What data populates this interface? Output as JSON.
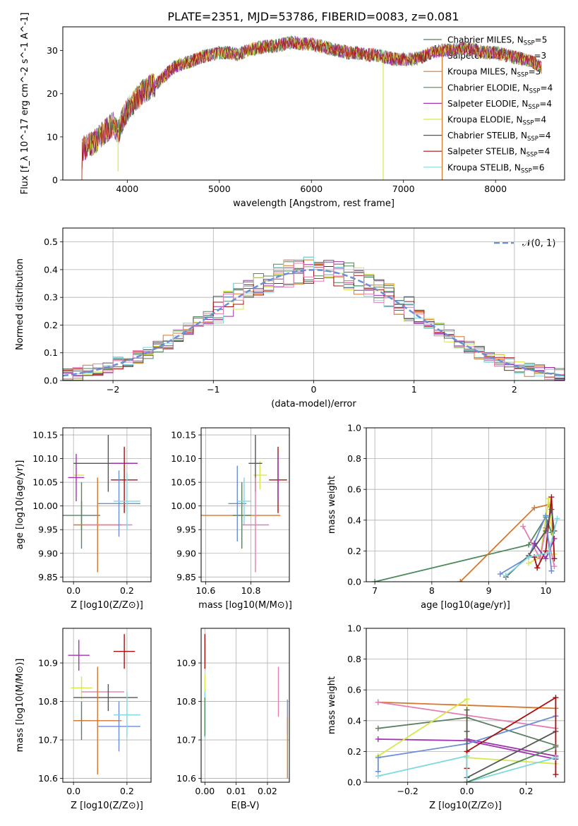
{
  "figure_title": "PLATE=2351, MJD=53786, FIBERID=0083, z=0.081",
  "series_legend": [
    {
      "name": "Chabrier MILES",
      "nssp": "5",
      "color": "#5b7f63"
    },
    {
      "name": "Salpeter MILES",
      "nssp": "3",
      "color": "#9a31a8"
    },
    {
      "name": "Kroupa MILES",
      "nssp": "3",
      "color": "#d8762b"
    },
    {
      "name": "Chabrier ELODIE",
      "nssp": "4",
      "color": "#4e8a5a"
    },
    {
      "name": "Salpeter ELODIE",
      "nssp": "4",
      "color": "#a333b5"
    },
    {
      "name": "Kroupa ELODIE",
      "nssp": "4",
      "color": "#d6e84a"
    },
    {
      "name": "Chabrier STELIB",
      "nssp": "4",
      "color": "#555555"
    },
    {
      "name": "Salpeter STELIB",
      "nssp": "4",
      "color": "#a81010"
    },
    {
      "name": "Kroupa STELIB",
      "nssp": "6",
      "color": "#7fd8e0"
    }
  ],
  "chart_data": [
    {
      "id": "spectrum",
      "type": "line",
      "title": "PLATE=2351, MJD=53786, FIBERID=0083, z=0.081",
      "xlabel": "wavelength [Angstrom, rest frame]",
      "ylabel": "Flux [f_λ 10^-17 erg cm^-2 s^-1 A^-1]",
      "xlim": [
        3300,
        8750
      ],
      "ylim": [
        0,
        35.5
      ],
      "xticks": [
        4000,
        5000,
        6000,
        7000,
        8000
      ],
      "yticks": [
        0,
        10,
        20,
        30
      ],
      "grid": false,
      "legend_position": "top-right",
      "continuum": {
        "x": [
          3500,
          3650,
          3750,
          3850,
          3900,
          3950,
          4000,
          4100,
          4200,
          4300,
          4400,
          4500,
          4600,
          4700,
          4800,
          4900,
          5000,
          5100,
          5200,
          5300,
          5400,
          5500,
          5600,
          5700,
          5800,
          5900,
          6000,
          6100,
          6200,
          6300,
          6400,
          6500,
          6600,
          6700,
          6800,
          6900,
          7000,
          7100,
          7200,
          7300,
          7400,
          7500,
          7600,
          7700,
          7800,
          7900,
          8000,
          8100,
          8200,
          8300,
          8400,
          8500
        ],
        "y": [
          7,
          9,
          11,
          13,
          11,
          14,
          16,
          19,
          21,
          22,
          24,
          26,
          27,
          27.5,
          28.5,
          29,
          29.5,
          29.5,
          29,
          30,
          30.5,
          31,
          31,
          31.5,
          32,
          31.5,
          31.5,
          31,
          30.5,
          30,
          29.5,
          29.5,
          29,
          29,
          28.5,
          28,
          28,
          28,
          28.5,
          29.5,
          30,
          30,
          30.5,
          30.5,
          30,
          29.5,
          29.5,
          29,
          28.5,
          28,
          27.5,
          26
        ]
      },
      "dips": [
        {
          "x": 6780,
          "y": 0
        },
        {
          "x": 7420,
          "y": 0
        },
        {
          "x": 3900,
          "y": 2
        }
      ]
    },
    {
      "id": "residuals",
      "type": "line",
      "xlabel": "(data-model)/error",
      "ylabel": "Normed distribution",
      "xlim": [
        -2.5,
        2.5
      ],
      "ylim": [
        0,
        0.55
      ],
      "xticks": [
        -2,
        -1,
        0,
        1,
        2
      ],
      "yticks": [
        0.0,
        0.1,
        0.2,
        0.3,
        0.4,
        0.5
      ],
      "grid": true,
      "legend_position": "top-right",
      "reference_legend": "𝒩(0, 1)",
      "reference_color": "#6a8fd6",
      "bin_width": 0.1
    },
    {
      "id": "age_vs_Z",
      "type": "scatter",
      "xlabel": "Z [log10(Z/Z⊙)]",
      "ylabel": "age [log10(age/yr)]",
      "xlim": [
        -0.04,
        0.29
      ],
      "ylim": [
        9.84,
        10.165
      ],
      "xticks": [
        0.0,
        0.2
      ],
      "xticklabels": [
        "0.0",
        "0.2"
      ],
      "yticks": [
        9.85,
        9.9,
        9.95,
        10.0,
        10.05,
        10.1,
        10.15
      ],
      "yticklabels": [
        "9.85",
        "9.90",
        "9.95",
        "10.00",
        "10.05",
        "10.10",
        "10.15"
      ],
      "grid": true,
      "points": [
        {
          "x": 0.02,
          "y": 10.065,
          "xe": 0.02,
          "ye": 0.0,
          "color": "#d6e84a"
        },
        {
          "x": 0.01,
          "y": 10.06,
          "xe": 0.03,
          "ye": 0.05,
          "color": "#a333b5"
        },
        {
          "x": 0.12,
          "y": 10.09,
          "xe": 0.12,
          "ye": 0.0,
          "color": "#555555"
        },
        {
          "x": 0.13,
          "y": 10.09,
          "xe": 0.0,
          "ye": 0.06,
          "color": "#555555"
        },
        {
          "x": 0.19,
          "y": 10.09,
          "xe": 0.05,
          "ye": 0.0,
          "color": "#9a31a8"
        },
        {
          "x": 0.19,
          "y": 10.055,
          "xe": 0.05,
          "ye": 0.07,
          "color": "#a81010"
        },
        {
          "x": 0.03,
          "y": 9.98,
          "xe": 0.07,
          "ye": 0.03,
          "color": "#5b7f63"
        },
        {
          "x": 0.03,
          "y": 9.98,
          "xe": 0.0,
          "ye": 0.07,
          "color": "#4e8a5a"
        },
        {
          "x": 0.09,
          "y": 9.96,
          "xe": 0.09,
          "ye": 0.1,
          "color": "#d8762b"
        },
        {
          "x": 0.13,
          "y": 9.96,
          "xe": 0.09,
          "ye": 0.0,
          "color": "#e47db3"
        },
        {
          "x": 0.17,
          "y": 10.005,
          "xe": 0.08,
          "ye": 0.07,
          "color": "#6a8fd6"
        },
        {
          "x": 0.2,
          "y": 10.01,
          "xe": 0.05,
          "ye": 0.06,
          "color": "#7fd8e0"
        }
      ]
    },
    {
      "id": "age_vs_mass",
      "type": "scatter",
      "xlabel": "mass [log10(M/M⊙)]",
      "ylabel": "",
      "xlim": [
        10.58,
        10.97
      ],
      "ylim": [
        9.84,
        10.165
      ],
      "xticks": [
        10.6,
        10.8
      ],
      "xticklabels": [
        "10.6",
        "10.8"
      ],
      "yticks": [
        9.85,
        9.9,
        9.95,
        10.0,
        10.05,
        10.1,
        10.15
      ],
      "yticklabels": [
        "9.85",
        "9.90",
        "9.95",
        "10.00",
        "10.05",
        "10.10",
        "10.15"
      ],
      "grid": true,
      "points": [
        {
          "x": 10.84,
          "y": 10.065,
          "xe": 0.03,
          "ye": 0.03,
          "color": "#d6e84a"
        },
        {
          "x": 10.82,
          "y": 10.09,
          "xe": 0.03,
          "ye": 0.06,
          "color": "#555555"
        },
        {
          "x": 10.92,
          "y": 10.055,
          "xe": 0.04,
          "ye": 0.07,
          "color": "#a81010"
        },
        {
          "x": 10.92,
          "y": 10.06,
          "xe": 0.0,
          "ye": 0.05,
          "color": "#9a31a8"
        },
        {
          "x": 10.75,
          "y": 9.98,
          "xe": 0.18,
          "ye": 0.0,
          "color": "#d8762b"
        },
        {
          "x": 10.76,
          "y": 9.98,
          "xe": 0.04,
          "ye": 0.07,
          "color": "#5b7f63"
        },
        {
          "x": 10.74,
          "y": 10.005,
          "xe": 0.04,
          "ye": 0.08,
          "color": "#6a8fd6"
        },
        {
          "x": 10.77,
          "y": 10.01,
          "xe": 0.03,
          "ye": 0.05,
          "color": "#7fd8e0"
        },
        {
          "x": 10.82,
          "y": 9.96,
          "xe": 0.06,
          "ye": 0.1,
          "color": "#e47db3"
        }
      ]
    },
    {
      "id": "massweight_vs_age",
      "type": "line",
      "xlabel": "age [log10(age/yr)]",
      "ylabel": "mass weight",
      "xlim": [
        6.85,
        10.33
      ],
      "ylim": [
        0,
        1.0
      ],
      "xticks": [
        7,
        8,
        9,
        10
      ],
      "yticks": [
        0.0,
        0.2,
        0.4,
        0.6,
        0.8,
        1.0
      ],
      "grid": true,
      "series": [
        {
          "color": "#4e8a5a",
          "x": [
            7.0,
            9.7,
            10.0,
            10.1
          ],
          "y": [
            0.0,
            0.24,
            0.42,
            0.32
          ]
        },
        {
          "color": "#d8762b",
          "x": [
            8.5,
            9.8,
            10.05
          ],
          "y": [
            0.0,
            0.48,
            0.5
          ]
        },
        {
          "color": "#d6e84a",
          "x": [
            9.7,
            9.9,
            10.05,
            10.15
          ],
          "y": [
            0.12,
            0.16,
            0.54,
            0.18
          ]
        },
        {
          "color": "#e47db3",
          "x": [
            9.6,
            9.9,
            10.0,
            10.15
          ],
          "y": [
            0.36,
            0.15,
            0.35,
            0.1
          ]
        },
        {
          "color": "#a81010",
          "x": [
            9.8,
            9.85,
            10.0,
            10.1,
            10.15
          ],
          "y": [
            0.16,
            0.09,
            0.2,
            0.55,
            0.15
          ]
        },
        {
          "color": "#6a8fd6",
          "x": [
            9.2,
            9.7,
            10.0,
            10.1
          ],
          "y": [
            0.05,
            0.16,
            0.43,
            0.07
          ]
        },
        {
          "color": "#9a31a8",
          "x": [
            9.8,
            10.0,
            10.15
          ],
          "y": [
            0.25,
            0.15,
            0.28
          ]
        },
        {
          "color": "#555555",
          "x": [
            9.3,
            9.7,
            10.0,
            10.1,
            10.15
          ],
          "y": [
            0.03,
            0.17,
            0.33,
            0.47,
            0.33
          ]
        },
        {
          "color": "#7fd8e0",
          "x": [
            9.3,
            9.7,
            10.05,
            10.2
          ],
          "y": [
            0.04,
            0.16,
            0.19,
            0.41
          ]
        }
      ]
    },
    {
      "id": "mass_vs_Z",
      "type": "scatter",
      "xlabel": "Z [log10(Z/Z⊙)]",
      "ylabel": "mass [log10(M/M⊙)]",
      "xlim": [
        -0.04,
        0.29
      ],
      "ylim": [
        10.59,
        10.99
      ],
      "xticks": [
        0.0,
        0.2
      ],
      "xticklabels": [
        "0.0",
        "0.2"
      ],
      "yticks": [
        10.6,
        10.7,
        10.8,
        10.9
      ],
      "yticklabels": [
        "10.6",
        "10.7",
        "10.8",
        "10.9"
      ],
      "grid": true,
      "points": [
        {
          "x": 0.02,
          "y": 10.92,
          "xe": 0.04,
          "ye": 0.04,
          "color": "#a333b5"
        },
        {
          "x": 0.19,
          "y": 10.93,
          "xe": 0.04,
          "ye": 0.045,
          "color": "#a81010"
        },
        {
          "x": 0.03,
          "y": 10.835,
          "xe": 0.04,
          "ye": 0.03,
          "color": "#d6e84a"
        },
        {
          "x": 0.11,
          "y": 10.825,
          "xe": 0.08,
          "ye": 0.0,
          "color": "#e47db3"
        },
        {
          "x": 0.12,
          "y": 10.81,
          "xe": 0.12,
          "ye": 0.0,
          "color": "#555555"
        },
        {
          "x": 0.13,
          "y": 10.81,
          "xe": 0.0,
          "ye": 0.035,
          "color": "#555555"
        },
        {
          "x": 0.03,
          "y": 10.75,
          "xe": 0.03,
          "ye": 0.05,
          "color": "#5b7f63"
        },
        {
          "x": 0.09,
          "y": 10.75,
          "xe": 0.09,
          "ye": 0.14,
          "color": "#d8762b"
        },
        {
          "x": 0.17,
          "y": 10.735,
          "xe": 0.08,
          "ye": 0.065,
          "color": "#6a8fd6"
        },
        {
          "x": 0.2,
          "y": 10.765,
          "xe": 0.05,
          "ye": 0.06,
          "color": "#7fd8e0"
        }
      ]
    },
    {
      "id": "mass_vs_EBV",
      "type": "scatter",
      "xlabel": "E(B-V)",
      "ylabel": "",
      "xlim": [
        -0.0012,
        0.027
      ],
      "ylim": [
        10.59,
        10.99
      ],
      "xticks": [
        0.0,
        0.01,
        0.02
      ],
      "xticklabels": [
        "0.00",
        "0.01",
        "0.02"
      ],
      "yticks": [
        10.6,
        10.7,
        10.8,
        10.9
      ],
      "yticklabels": [
        "10.6",
        "10.7",
        "10.8",
        "10.9"
      ],
      "grid": true,
      "points": [
        {
          "x": 0.0,
          "y": 10.93,
          "xe": 0.0,
          "ye": 0.045,
          "color": "#a81010"
        },
        {
          "x": 0.0,
          "y": 10.84,
          "xe": 0.0,
          "ye": 0.03,
          "color": "#d6e84a"
        },
        {
          "x": 0.0,
          "y": 10.765,
          "xe": 0.0,
          "ye": 0.06,
          "color": "#7fd8e0"
        },
        {
          "x": 0.0,
          "y": 10.76,
          "xe": 0.0,
          "ye": 0.05,
          "color": "#4e8a5a"
        },
        {
          "x": 0.0235,
          "y": 10.825,
          "xe": 0.0,
          "ye": 0.065,
          "color": "#e47db3"
        },
        {
          "x": 0.0264,
          "y": 10.76,
          "xe": 0.0,
          "ye": 0.045,
          "color": "#6a8fd6"
        },
        {
          "x": 0.0264,
          "y": 10.68,
          "xe": 0.0,
          "ye": 0.08,
          "color": "#d8762b"
        }
      ]
    },
    {
      "id": "massweight_vs_Z",
      "type": "line",
      "xlabel": "Z [log10(Z/Z⊙)]",
      "ylabel": "mass weight",
      "xlim": [
        -0.34,
        0.33
      ],
      "ylim": [
        0,
        1.0
      ],
      "xticks": [
        -0.2,
        0.0,
        0.2
      ],
      "xticklabels": [
        "−0.2",
        "0.0",
        "0.2"
      ],
      "yticks": [
        0.0,
        0.2,
        0.4,
        0.6,
        0.8,
        1.0
      ],
      "grid": true,
      "series": [
        {
          "color": "#d8762b",
          "x": [
            -0.3,
            0.3
          ],
          "y": [
            0.52,
            0.48
          ]
        },
        {
          "color": "#e47db3",
          "x": [
            -0.3,
            0.3
          ],
          "y": [
            0.52,
            0.35
          ]
        },
        {
          "color": "#5b7f63",
          "x": [
            -0.3,
            0.0,
            0.3
          ],
          "y": [
            0.35,
            0.42,
            0.24
          ]
        },
        {
          "color": "#a333b5",
          "x": [
            -0.3,
            0.0,
            0.3
          ],
          "y": [
            0.28,
            0.27,
            0.15
          ]
        },
        {
          "color": "#9a31a8",
          "x": [
            0.0,
            0.3
          ],
          "y": [
            0.28,
            0.17
          ]
        },
        {
          "color": "#d6e84a",
          "x": [
            -0.3,
            0.0,
            0.0,
            0.3
          ],
          "y": [
            0.17,
            0.54,
            0.16,
            0.12
          ]
        },
        {
          "color": "#6a8fd6",
          "x": [
            -0.3,
            -0.3,
            0.0,
            0.3
          ],
          "y": [
            0.07,
            0.16,
            0.25,
            0.43
          ]
        },
        {
          "color": "#555555",
          "x": [
            0.0,
            0.0,
            0.0,
            0.3
          ],
          "y": [
            0.47,
            0.33,
            0.03,
            0.33
          ]
        },
        {
          "color": "#a81010",
          "x": [
            0.0,
            0.0,
            0.3,
            0.3
          ],
          "y": [
            0.09,
            0.2,
            0.55,
            0.05
          ]
        },
        {
          "color": "#7fd8e0",
          "x": [
            -0.3,
            0.0,
            0.0,
            0.3
          ],
          "y": [
            0.04,
            0.17,
            0.0,
            0.16
          ]
        },
        {
          "color": "#4e8a5a",
          "x": [
            0.0,
            0.3
          ],
          "y": [
            0.0,
            0.23
          ]
        }
      ]
    }
  ]
}
